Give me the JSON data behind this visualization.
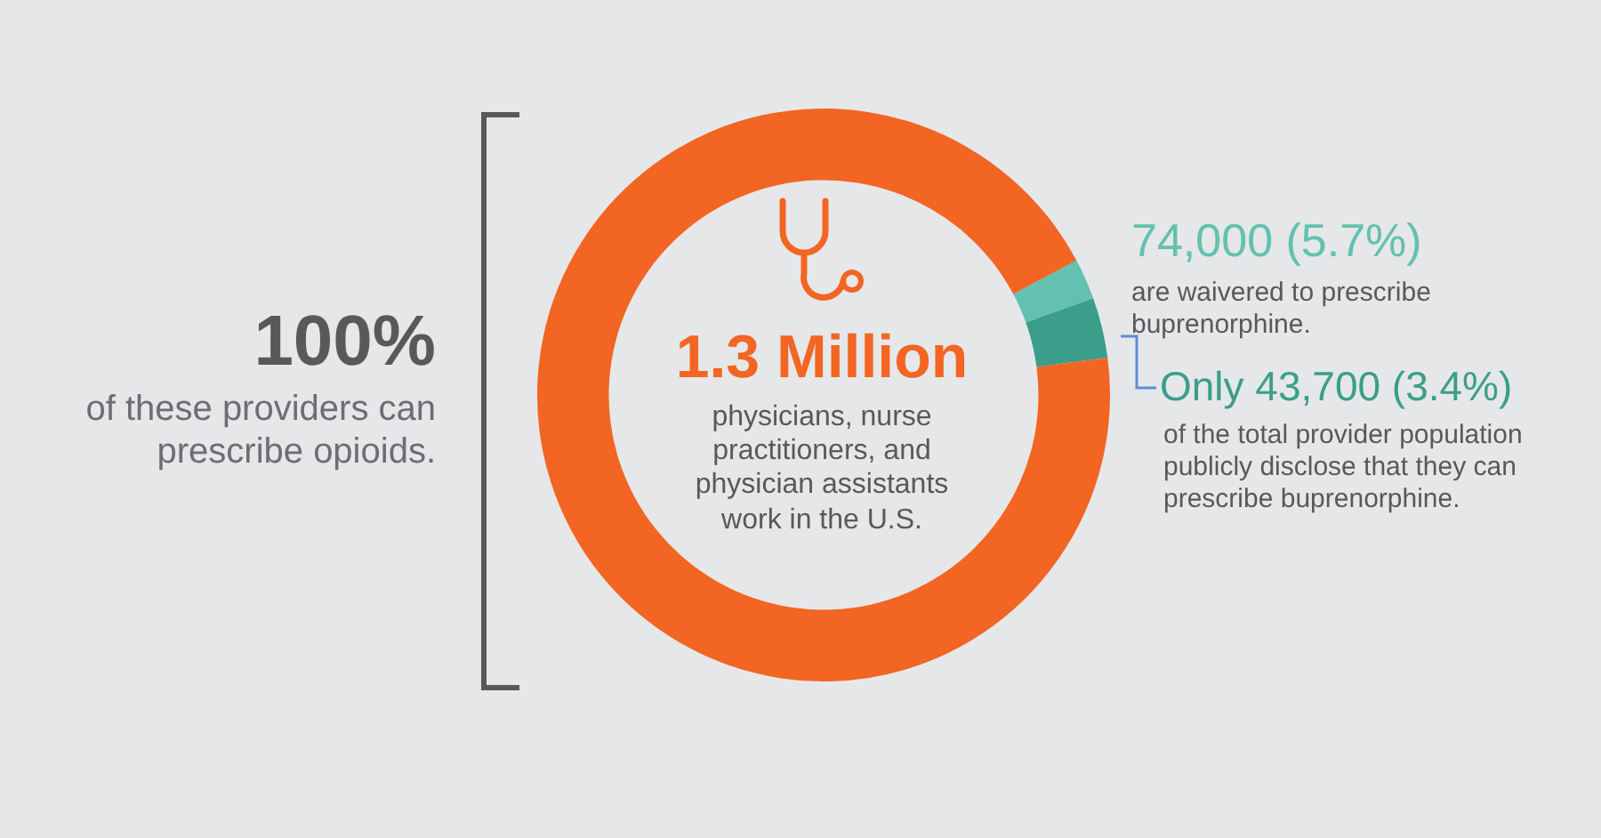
{
  "chart_data": {
    "type": "donut",
    "categories": [
      null,
      null,
      null
    ],
    "values": [
      2.3,
      3.4,
      94.3
    ],
    "colors": [
      "#62c1b0",
      "#3a9e8a",
      "#f26522"
    ],
    "legend": false,
    "annotations": [
      "100%",
      "of these providers can prescribe opioids.",
      "1.3 Million",
      "physicians, nurse practitioners, and physician assistants work in the U.S.",
      "74,000 (5.7%)",
      "are waivered to prescribe buprenorphine.",
      "Only 43,700 (3.4%)",
      "of the total provider population publicly disclose that they can prescribe buprenorphine."
    ]
  }
}
